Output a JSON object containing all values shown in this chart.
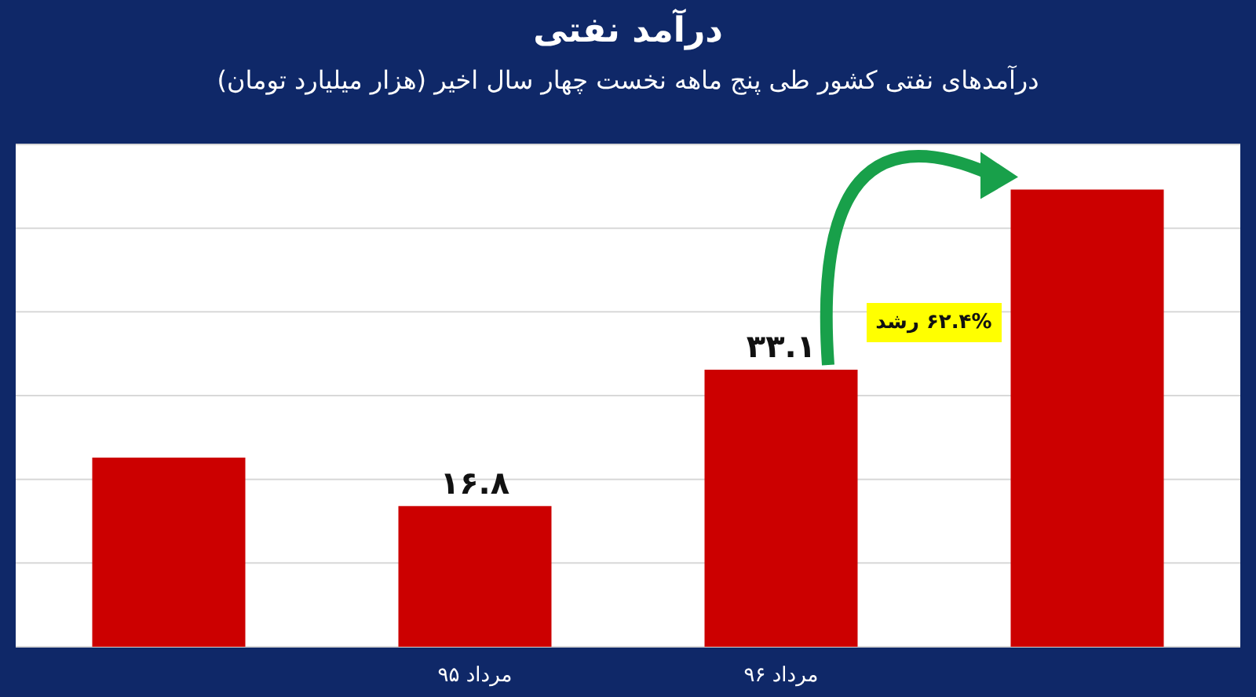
{
  "chart_data": {
    "type": "bar",
    "title": "درآمد نفتی",
    "subtitle": "درآمدهای نفتی کشور طی پنج ماهه نخست چهار سال اخیر (هزار میلیارد تومان)",
    "categories": [
      null,
      "مرداد ۹۵",
      "مرداد ۹۶",
      null
    ],
    "values": [
      22.6,
      16.8,
      33.1,
      54.6
    ],
    "value_labels": [
      null,
      "۱۶.۸",
      "۳۳.۱",
      null
    ],
    "color": "#cc0000",
    "ylim": [
      0,
      60
    ],
    "yticks": [
      {
        "value": 0,
        "label": null
      },
      {
        "value": 10,
        "label": null
      },
      {
        "value": 20,
        "label": null
      },
      {
        "value": 30,
        "label": null
      },
      {
        "value": 40,
        "label": null
      },
      {
        "value": 50,
        "label": null
      },
      {
        "value": 60,
        "label": null
      }
    ],
    "tick_labels": "x",
    "grid": "y",
    "annotations": [
      "۶۲.۴% رشد"
    ]
  }
}
